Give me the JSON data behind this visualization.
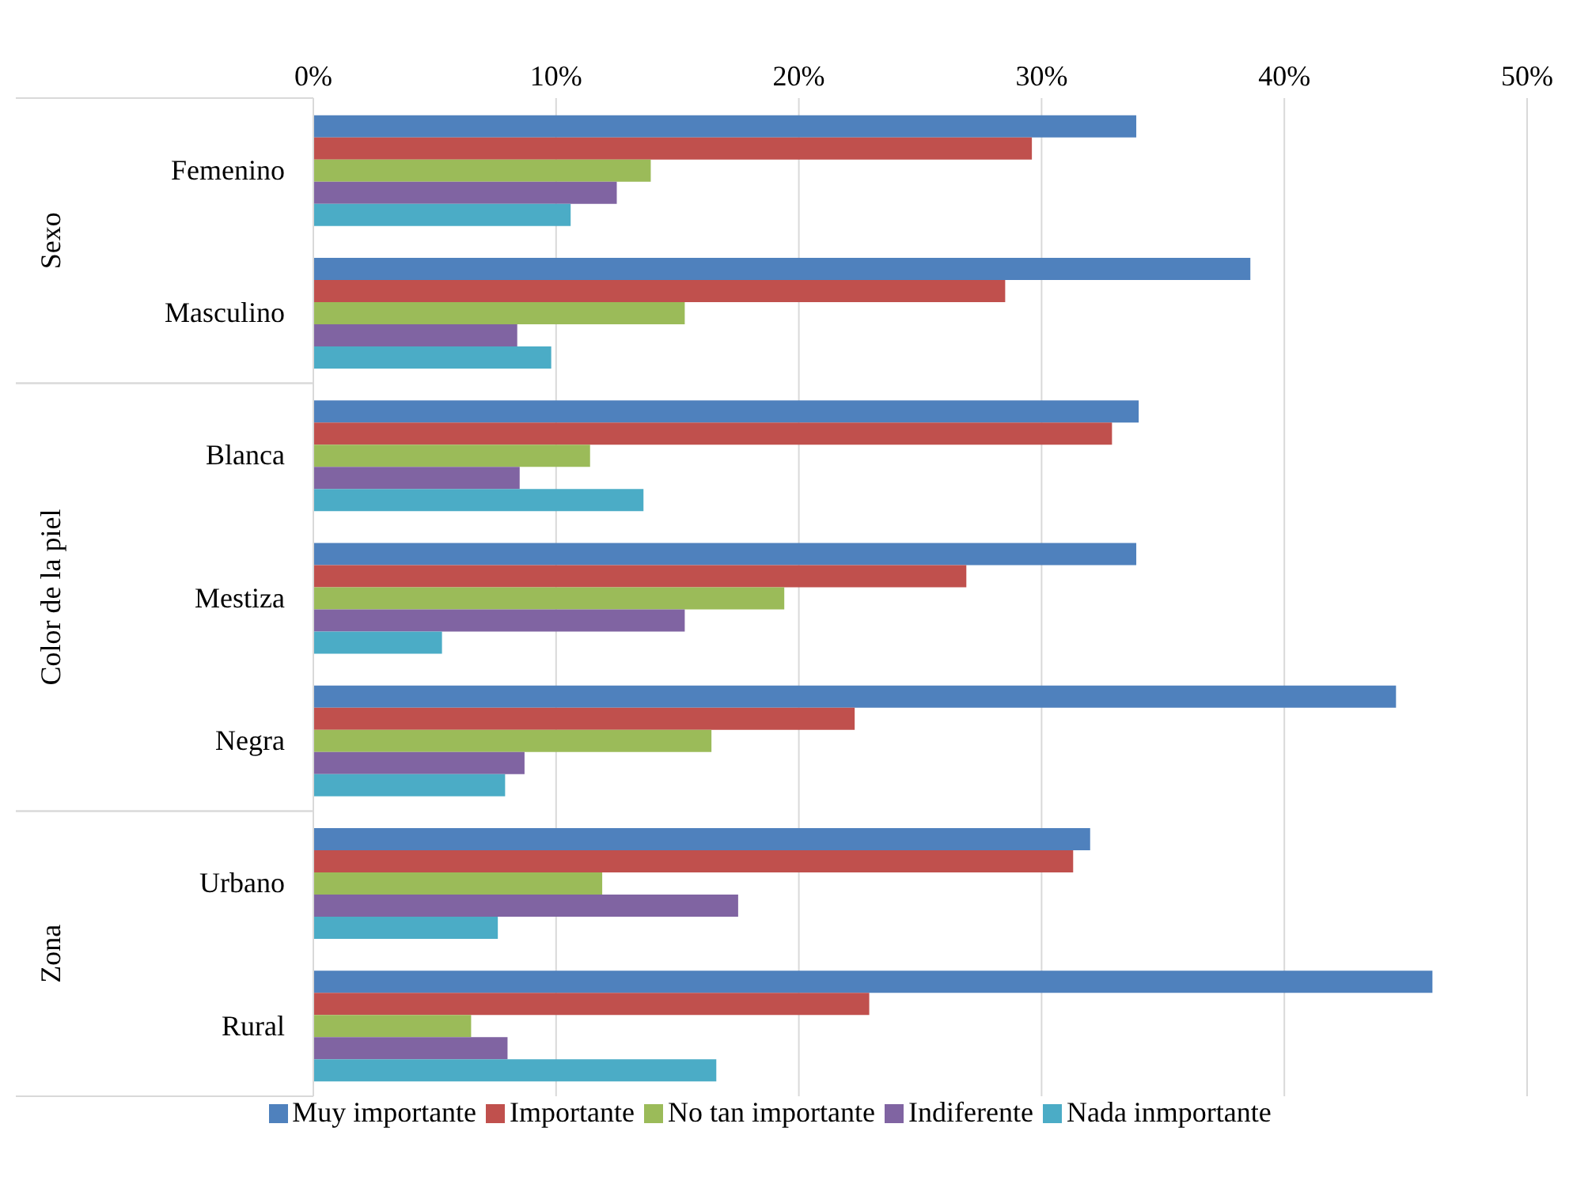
{
  "chart_data": {
    "type": "bar",
    "orientation": "horizontal",
    "categories": [
      "Femenino",
      "Masculino",
      "Blanca",
      "Mestiza",
      "Negra",
      "Urbano",
      "Rural"
    ],
    "annotations": [
      "Sexo",
      "Color de la piel",
      "Zona"
    ],
    "series": [
      {
        "name": "Muy importante",
        "color": "#4f81bd",
        "values": [
          33.9,
          38.6,
          34.0,
          33.9,
          44.6,
          32.0,
          46.1
        ]
      },
      {
        "name": "Importante",
        "color": "#c0504d",
        "values": [
          29.6,
          28.5,
          32.9,
          26.9,
          22.3,
          31.3,
          22.9
        ]
      },
      {
        "name": "No tan importante",
        "color": "#9bbb59",
        "values": [
          13.9,
          15.3,
          11.4,
          19.4,
          16.4,
          11.9,
          6.5
        ]
      },
      {
        "name": "Indiferente",
        "color": "#8064a2",
        "values": [
          12.5,
          8.4,
          8.5,
          15.3,
          8.7,
          17.5,
          8.0
        ]
      },
      {
        "name": "Nada inmportante",
        "color": "#4bacc6",
        "values": [
          10.6,
          9.8,
          13.6,
          5.3,
          7.9,
          7.6,
          16.6
        ]
      }
    ],
    "xlim": [
      0,
      50
    ],
    "xticks": [
      {
        "value": 0,
        "label": "0%"
      },
      {
        "value": 10,
        "label": "10%"
      },
      {
        "value": 20,
        "label": "20%"
      },
      {
        "value": 30,
        "label": "30%"
      },
      {
        "value": 40,
        "label": "40%"
      },
      {
        "value": 50,
        "label": "50%"
      }
    ],
    "grid": "x",
    "legend": "bottom"
  }
}
